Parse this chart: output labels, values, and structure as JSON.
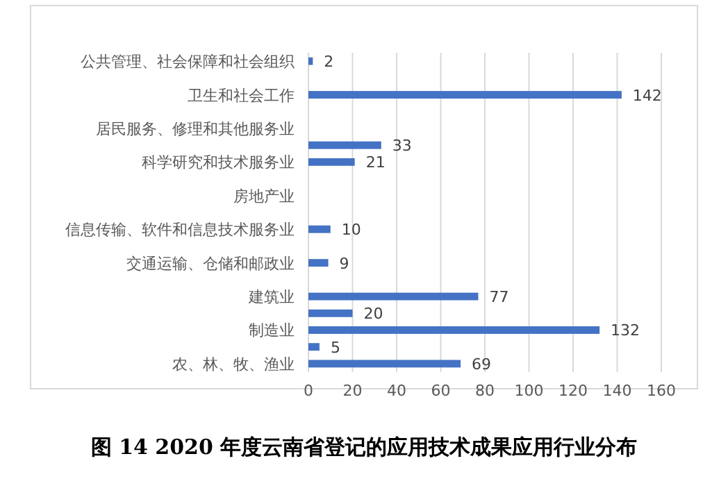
{
  "chart_data": {
    "type": "bar",
    "orientation": "horizontal",
    "title": "图 14 2020 年度云南省登记的应用技术成果应用行业分布",
    "categories": [
      "公共管理、社会保障和社会组织",
      null,
      "卫生和社会工作",
      null,
      "居民服务、修理和其他服务业",
      null,
      "科学研究和技术服务业",
      null,
      "房地产业",
      null,
      "信息传输、软件和信息技术服务业",
      null,
      "交通运输、仓储和邮政业",
      null,
      "建筑业",
      null,
      "制造业",
      null,
      "农、林、牧、渔业"
    ],
    "values": [
      2,
      null,
      142,
      null,
      null,
      33,
      21,
      null,
      null,
      null,
      10,
      null,
      9,
      null,
      77,
      20,
      132,
      5,
      69
    ],
    "color": "#4472c4",
    "xlim": [
      0,
      160
    ],
    "xticks": [
      0,
      20,
      40,
      60,
      80,
      100,
      120,
      140,
      160
    ],
    "grid": "x",
    "data_labels": true
  }
}
